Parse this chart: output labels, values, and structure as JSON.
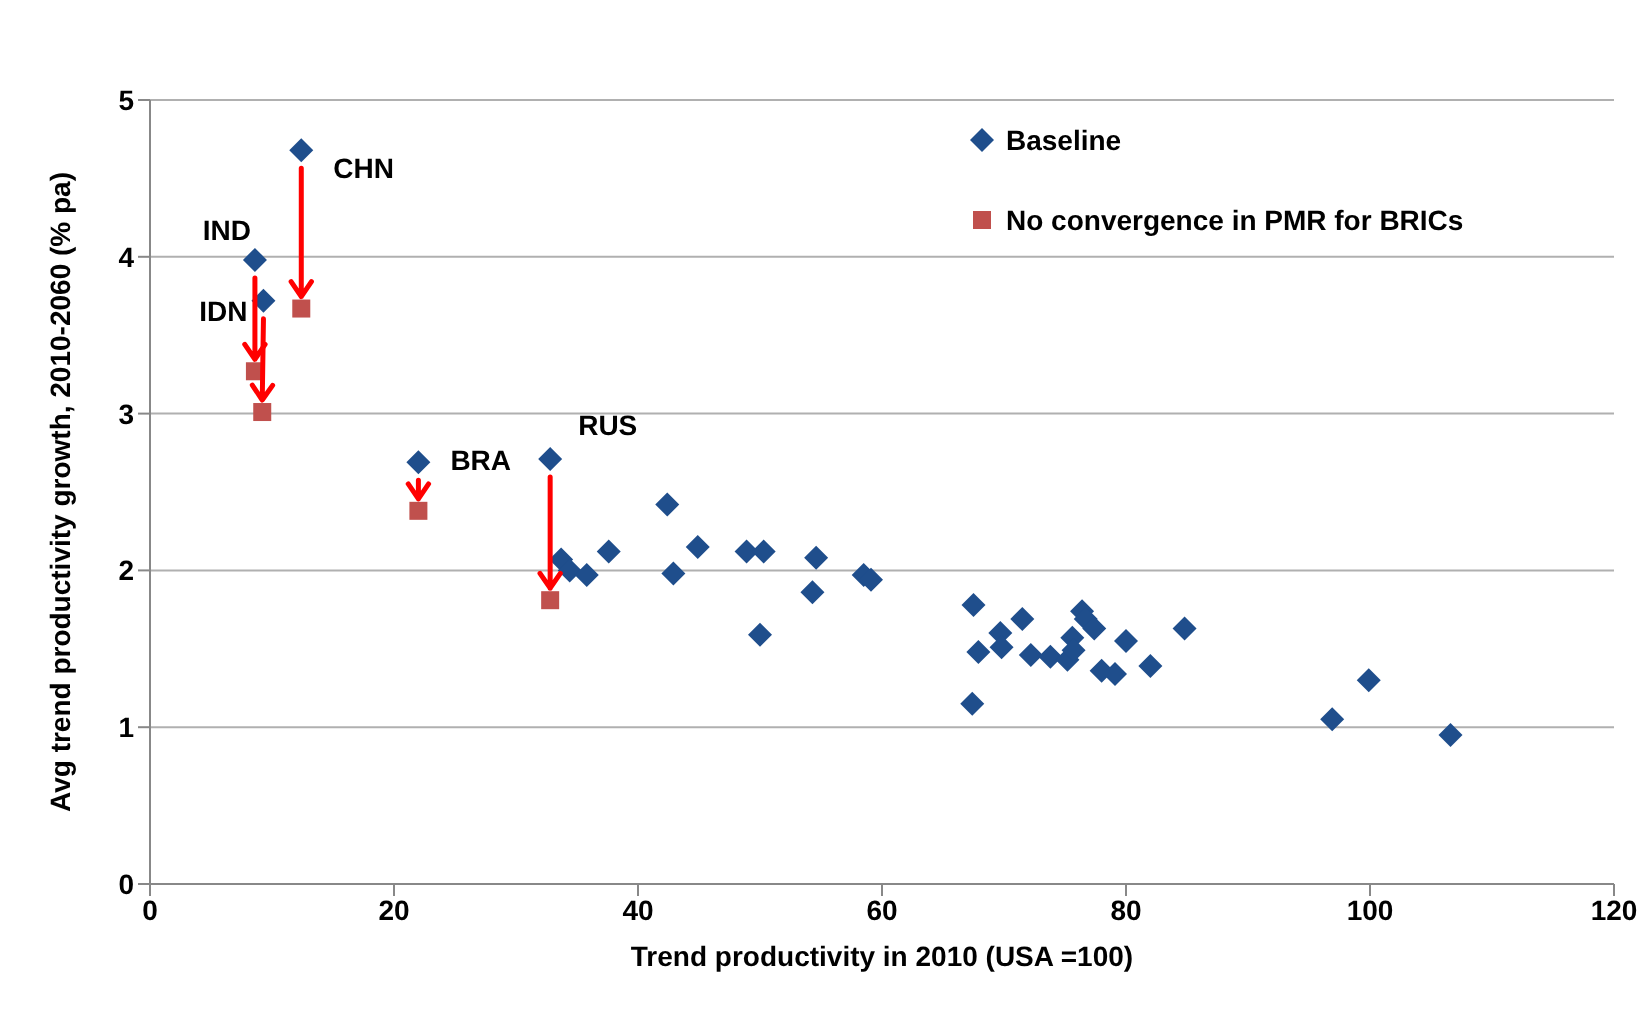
{
  "chart_data": {
    "type": "scatter",
    "xlabel": "Trend productivity in 2010 (USA =100)",
    "ylabel": "Avg trend productivity growth, 2010-2060 (% pa)",
    "xlim": [
      0,
      120
    ],
    "xticks": [
      0,
      20,
      40,
      60,
      80,
      100,
      120
    ],
    "ylim": [
      0,
      5
    ],
    "yticks": [
      0,
      1,
      2,
      3,
      4,
      5
    ],
    "grid": "y",
    "legend": "top right",
    "series": [
      {
        "name": "Baseline",
        "color": "#1f4e8c",
        "marker": "diamond",
        "x": [
          12.4,
          8.6,
          9.3,
          22.0,
          32.8,
          33.7,
          34.4,
          35.8,
          37.6,
          42.4,
          42.9,
          44.9,
          48.9,
          50.3,
          50.0,
          54.6,
          54.3,
          58.5,
          59.1,
          67.5,
          67.9,
          67.4,
          69.7,
          69.8,
          71.5,
          72.2,
          73.8,
          75.2,
          75.6,
          75.7,
          76.4,
          76.7,
          77.4,
          78.0,
          79.1,
          80.0,
          82.0,
          84.8,
          96.9,
          99.9,
          106.6
        ],
        "values": [
          4.68,
          3.98,
          3.72,
          2.69,
          2.71,
          2.07,
          2.0,
          1.97,
          2.12,
          2.42,
          1.98,
          2.15,
          2.12,
          2.12,
          1.59,
          2.08,
          1.86,
          1.97,
          1.94,
          1.78,
          1.48,
          1.15,
          1.6,
          1.51,
          1.69,
          1.46,
          1.45,
          1.43,
          1.57,
          1.49,
          1.74,
          1.69,
          1.63,
          1.36,
          1.34,
          1.55,
          1.39,
          1.63,
          1.05,
          1.3,
          0.95
        ]
      },
      {
        "name": "No convergence in PMR for BRICs",
        "color": "#c0504d",
        "marker": "square",
        "x": [
          12.4,
          8.6,
          9.2,
          22.0,
          32.8
        ],
        "values": [
          3.67,
          3.27,
          3.01,
          2.38,
          1.81
        ]
      }
    ],
    "annotations": [
      {
        "text": "CHN",
        "x": 12.4,
        "y": 4.68
      },
      {
        "text": "IND",
        "x": 8.6,
        "y": 3.98
      },
      {
        "text": "IDN",
        "x": 9.3,
        "y": 3.72
      },
      {
        "text": "BRA",
        "x": 22.0,
        "y": 2.69
      },
      {
        "text": "RUS",
        "x": 32.8,
        "y": 2.71
      }
    ]
  }
}
